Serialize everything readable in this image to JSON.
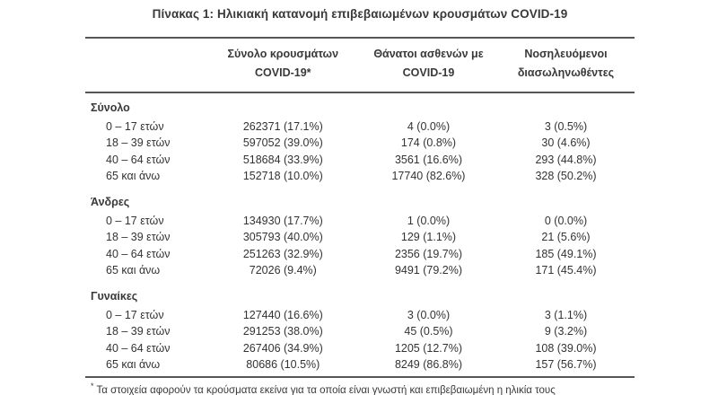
{
  "title": "Πίνακας 1: Ηλικιακή κατανομή επιβεβαιωμένων κρουσμάτων COVID-19",
  "header": {
    "columns": [
      {
        "id": "cases",
        "line1": "Σύνολο κρουσμάτων",
        "line2": "COVID-19*"
      },
      {
        "id": "deaths",
        "line1": "Θάνατοι ασθενών με",
        "line2": "COVID-19"
      },
      {
        "id": "intubated",
        "line1": "Νοσηλευόμενοι",
        "line2": "διασωληνωθέντες"
      }
    ]
  },
  "sections": [
    {
      "label": "Σύνολο",
      "rows": [
        {
          "age": "0 – 17 ετών",
          "cases": "262371 (17.1%)",
          "deaths": "4 (0.0%)",
          "intubated": "3 (0.5%)"
        },
        {
          "age": "18 – 39 ετών",
          "cases": "597052 (39.0%)",
          "deaths": "174 (0.8%)",
          "intubated": "30 (4.6%)"
        },
        {
          "age": "40 – 64 ετών",
          "cases": "518684 (33.9%)",
          "deaths": "3561 (16.6%)",
          "intubated": "293 (44.8%)"
        },
        {
          "age": "65 και άνω",
          "cases": "152718 (10.0%)",
          "deaths": "17740 (82.6%)",
          "intubated": "328 (50.2%)"
        }
      ]
    },
    {
      "label": "Άνδρες",
      "rows": [
        {
          "age": "0 – 17 ετών",
          "cases": "134930 (17.7%)",
          "deaths": "1 (0.0%)",
          "intubated": "0 (0.0%)"
        },
        {
          "age": "18 – 39 ετών",
          "cases": "305793 (40.0%)",
          "deaths": "129 (1.1%)",
          "intubated": "21 (5.6%)"
        },
        {
          "age": "40 – 64 ετών",
          "cases": "251263 (32.9%)",
          "deaths": "2356 (19.7%)",
          "intubated": "185 (49.1%)"
        },
        {
          "age": "65 και άνω",
          "cases": "72026 (9.4%)",
          "deaths": "9491 (79.2%)",
          "intubated": "171 (45.4%)"
        }
      ]
    },
    {
      "label": "Γυναίκες",
      "rows": [
        {
          "age": "0 – 17 ετών",
          "cases": "127440 (16.6%)",
          "deaths": "3 (0.0%)",
          "intubated": "3 (1.1%)"
        },
        {
          "age": "18 – 39 ετών",
          "cases": "291253 (38.0%)",
          "deaths": "45 (0.5%)",
          "intubated": "9 (3.2%)"
        },
        {
          "age": "40 – 64 ετών",
          "cases": "267406 (34.9%)",
          "deaths": "1205 (12.7%)",
          "intubated": "108 (39.0%)"
        },
        {
          "age": "65 και άνω",
          "cases": "80686 (10.5%)",
          "deaths": "8249 (86.8%)",
          "intubated": "157 (56.7%)"
        }
      ]
    }
  ],
  "footnote": {
    "marker": "*",
    "text": "Τα στοιχεία αφορούν τα κρούσματα εκείνα για τα οποία είναι γνωστή και επιβεβαιωμένη η ηλικία τους"
  }
}
